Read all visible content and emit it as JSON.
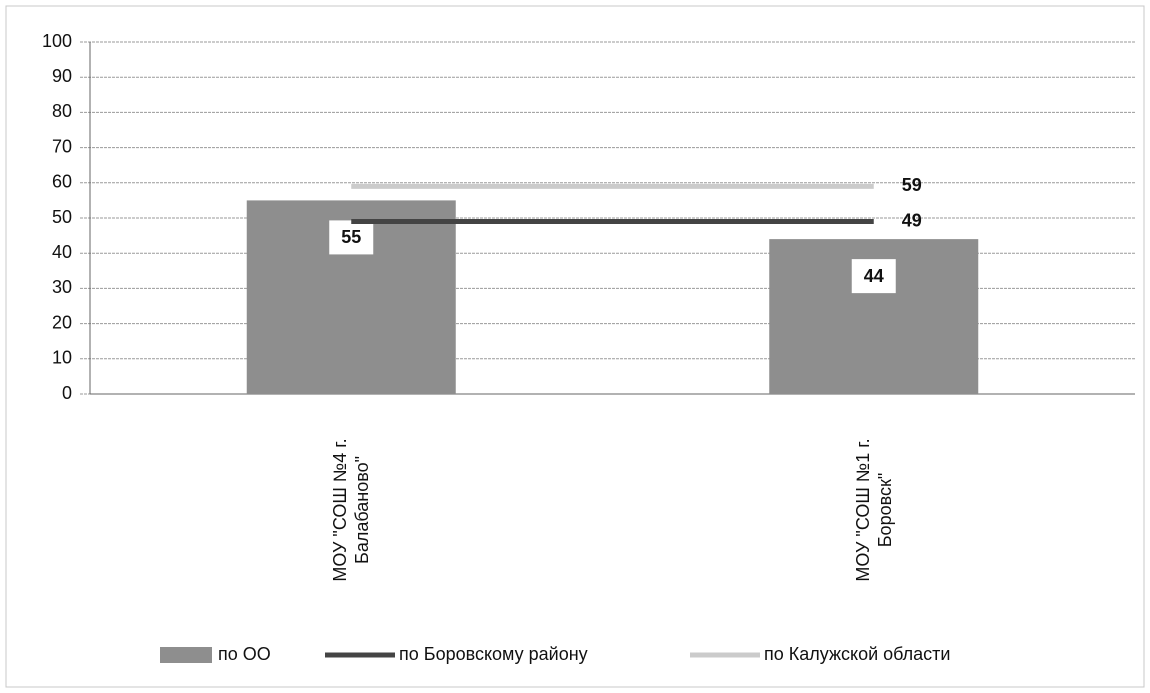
{
  "chart_data": {
    "type": "bar",
    "categories": [
      "МОУ \"СОШ №4 г. Балабаново\"",
      "МОУ \"СОШ №1 г. Боровск\""
    ],
    "series": [
      {
        "name": "по ОО",
        "type": "bar",
        "color": "#8e8e8e",
        "values": [
          55,
          44
        ],
        "data_labels": "all"
      },
      {
        "name": "по Боровскому району",
        "type": "line",
        "color": "#444444",
        "values": [
          49,
          49
        ],
        "data_labels": "last"
      },
      {
        "name": "по Калужской области",
        "type": "line",
        "color": "#cbcbcb",
        "values": [
          59,
          59
        ],
        "data_labels": "last"
      }
    ],
    "ylim": [
      0,
      100
    ],
    "yticks": [
      0,
      10,
      20,
      30,
      40,
      50,
      60,
      70,
      80,
      90,
      100
    ],
    "grid": true,
    "legend": "bottom"
  }
}
